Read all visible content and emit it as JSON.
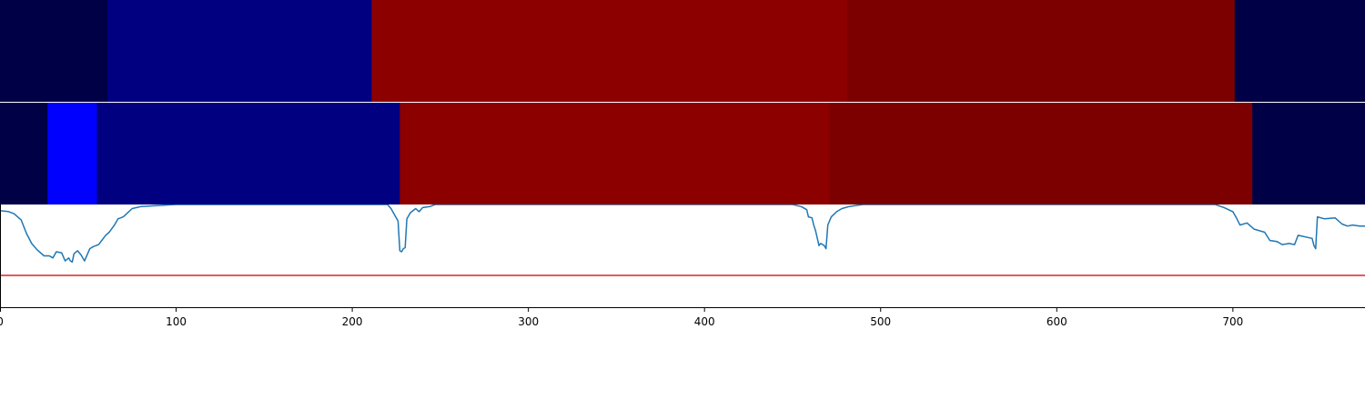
{
  "chart_data": {
    "type": "heatmap",
    "xlim": [
      0,
      775
    ],
    "x_ticks": [
      0,
      100,
      200,
      300,
      400,
      500,
      600,
      700
    ],
    "tracks": [
      {
        "segments": [
          {
            "start": 0,
            "end": 61,
            "color": "#000046"
          },
          {
            "start": 61,
            "end": 211,
            "color": "#000080"
          },
          {
            "start": 211,
            "end": 481,
            "color": "#8d0000"
          },
          {
            "start": 481,
            "end": 701,
            "color": "#7c0000"
          },
          {
            "start": 701,
            "end": 775,
            "color": "#000046"
          }
        ]
      },
      {
        "segments": [
          {
            "start": 0,
            "end": 27,
            "color": "#000046"
          },
          {
            "start": 27,
            "end": 55,
            "color": "#0000ff"
          },
          {
            "start": 55,
            "end": 227,
            "color": "#000080"
          },
          {
            "start": 227,
            "end": 471,
            "color": "#8d0000"
          },
          {
            "start": 471,
            "end": 711,
            "color": "#7c0000"
          },
          {
            "start": 711,
            "end": 775,
            "color": "#000046"
          }
        ]
      }
    ],
    "line_series": {
      "color": "#1f77b4",
      "ylim": [
        0,
        1
      ],
      "points": [
        [
          0,
          0.94
        ],
        [
          5,
          0.93
        ],
        [
          8,
          0.91
        ],
        [
          12,
          0.85
        ],
        [
          15,
          0.72
        ],
        [
          18,
          0.62
        ],
        [
          21,
          0.56
        ],
        [
          25,
          0.5
        ],
        [
          28,
          0.5
        ],
        [
          30,
          0.48
        ],
        [
          32,
          0.54
        ],
        [
          35,
          0.53
        ],
        [
          37,
          0.45
        ],
        [
          39,
          0.48
        ],
        [
          40,
          0.45
        ],
        [
          41,
          0.44
        ],
        [
          42,
          0.52
        ],
        [
          44,
          0.55
        ],
        [
          46,
          0.51
        ],
        [
          48,
          0.45
        ],
        [
          51,
          0.57
        ],
        [
          53,
          0.59
        ],
        [
          56,
          0.61
        ],
        [
          60,
          0.7
        ],
        [
          62,
          0.73
        ],
        [
          65,
          0.8
        ],
        [
          67,
          0.86
        ],
        [
          70,
          0.88
        ],
        [
          75,
          0.96
        ],
        [
          80,
          0.98
        ],
        [
          90,
          0.99
        ],
        [
          100,
          1.0
        ],
        [
          220,
          1.0
        ],
        [
          222,
          0.96
        ],
        [
          224,
          0.9
        ],
        [
          226,
          0.84
        ],
        [
          227,
          0.55
        ],
        [
          228,
          0.54
        ],
        [
          229,
          0.57
        ],
        [
          230,
          0.58
        ],
        [
          231,
          0.86
        ],
        [
          233,
          0.92
        ],
        [
          236,
          0.96
        ],
        [
          238,
          0.93
        ],
        [
          240,
          0.97
        ],
        [
          244,
          0.98
        ],
        [
          247,
          1.0
        ],
        [
          250,
          1.0
        ],
        [
          450,
          1.0
        ],
        [
          455,
          0.98
        ],
        [
          458,
          0.95
        ],
        [
          459,
          0.88
        ],
        [
          461,
          0.87
        ],
        [
          462,
          0.8
        ],
        [
          463,
          0.75
        ],
        [
          465,
          0.6
        ],
        [
          466,
          0.62
        ],
        [
          468,
          0.6
        ],
        [
          469,
          0.57
        ],
        [
          470,
          0.8
        ],
        [
          472,
          0.88
        ],
        [
          475,
          0.93
        ],
        [
          478,
          0.96
        ],
        [
          482,
          0.98
        ],
        [
          490,
          1.0
        ],
        [
          500,
          1.0
        ],
        [
          690,
          1.0
        ],
        [
          695,
          0.97
        ],
        [
          700,
          0.93
        ],
        [
          702,
          0.87
        ],
        [
          704,
          0.8
        ],
        [
          708,
          0.82
        ],
        [
          712,
          0.76
        ],
        [
          718,
          0.73
        ],
        [
          721,
          0.65
        ],
        [
          725,
          0.64
        ],
        [
          728,
          0.61
        ],
        [
          732,
          0.62
        ],
        [
          735,
          0.61
        ],
        [
          737,
          0.7
        ],
        [
          745,
          0.67
        ],
        [
          746,
          0.6
        ],
        [
          747,
          0.57
        ],
        [
          748,
          0.88
        ],
        [
          752,
          0.86
        ],
        [
          758,
          0.87
        ],
        [
          762,
          0.81
        ],
        [
          765,
          0.79
        ],
        [
          768,
          0.8
        ],
        [
          772,
          0.79
        ],
        [
          775,
          0.79
        ]
      ]
    },
    "threshold": {
      "y": 0.31,
      "color": "#d62728"
    }
  }
}
